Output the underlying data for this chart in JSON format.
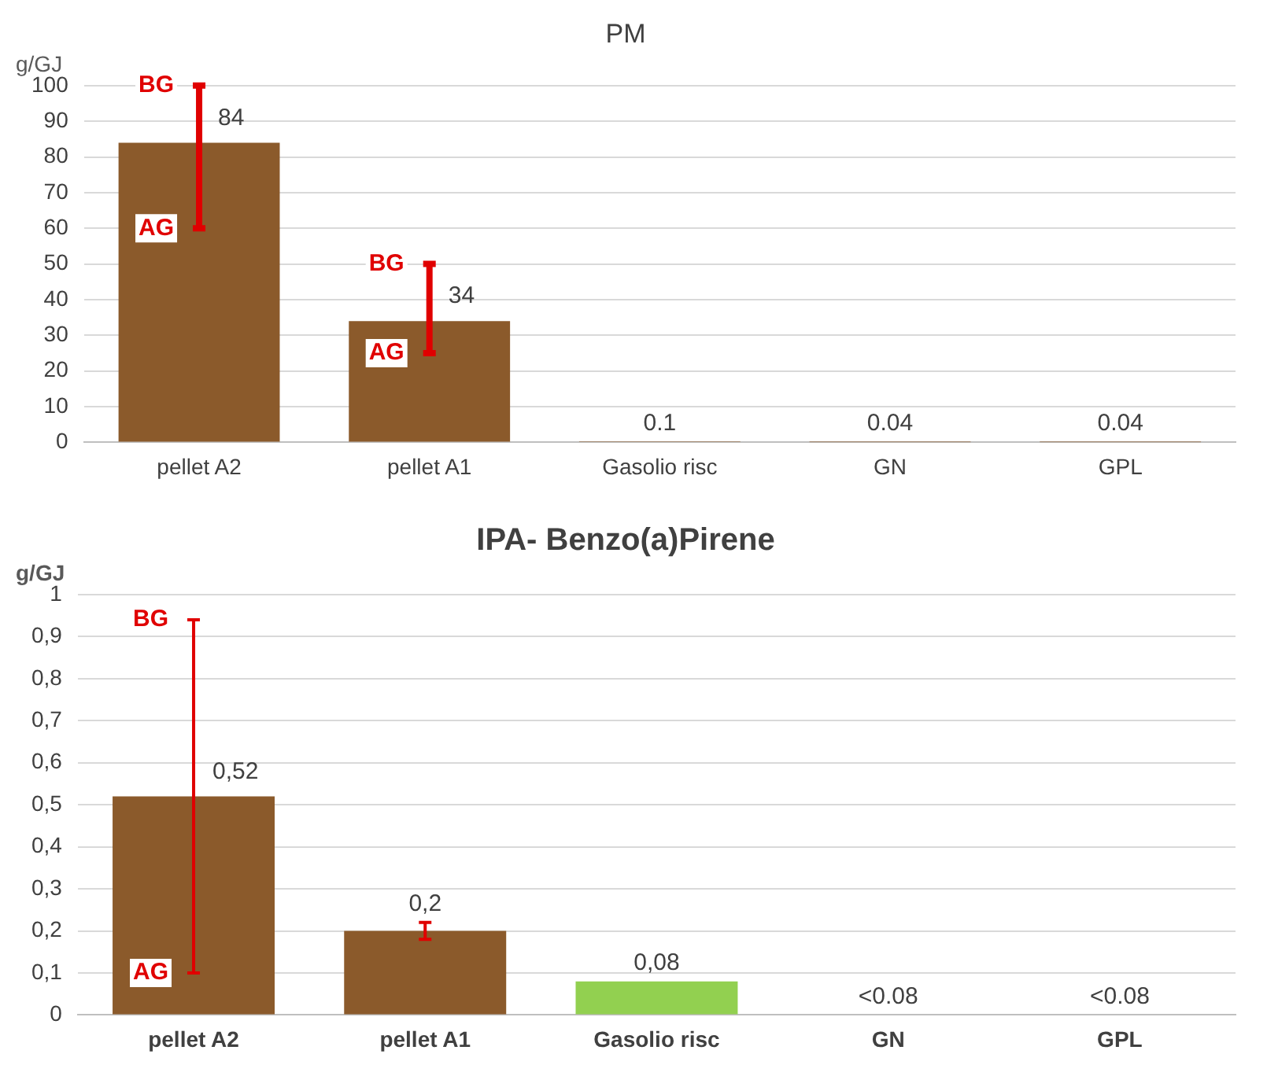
{
  "chart_data": [
    {
      "type": "bar",
      "title": "PM",
      "ylabel": "g/GJ",
      "categories": [
        "pellet A2",
        "pellet A1",
        "Gasolio risc",
        "GN",
        "GPL"
      ],
      "values": [
        84,
        34,
        0.1,
        0.04,
        0.04
      ],
      "color": "#8b5a2b",
      "errors": [
        [
          60,
          100
        ],
        [
          25,
          50
        ],
        null,
        null,
        null
      ],
      "annotations": [
        {
          "text": "BG",
          "x": "pellet A2",
          "y": 100
        },
        {
          "text": "AG",
          "x": "pellet A2",
          "y": 60
        },
        {
          "text": "BG",
          "x": "pellet A1",
          "y": 50
        },
        {
          "text": "AG",
          "x": "pellet A1",
          "y": 25
        }
      ],
      "ylim": [
        0,
        100
      ],
      "yticks": [
        0,
        10,
        20,
        30,
        40,
        50,
        60,
        70,
        80,
        90,
        100
      ],
      "grid": "y",
      "data_labels": true
    },
    {
      "type": "bar",
      "title": "IPA- Benzo(a)Pirene",
      "ylabel": "g/GJ",
      "categories": [
        "pellet A2",
        "pellet A1",
        "Gasolio risc",
        "GN",
        "GPL"
      ],
      "values": [
        0.52,
        0.2,
        0.08,
        null,
        null
      ],
      "colors": [
        "#8b5a2b",
        "#8b5a2b",
        "#92d050",
        "#8b5a2b",
        "#8b5a2b"
      ],
      "value_labels": [
        "0,52",
        "0,2",
        "0,08",
        "<0.08",
        "<0.08"
      ],
      "errors": [
        [
          0.1,
          0.94
        ],
        [
          0.18,
          0.22
        ],
        null,
        null,
        null
      ],
      "annotations": [
        {
          "text": "BG",
          "x": "pellet A2",
          "y": 0.94
        },
        {
          "text": "AG",
          "x": "pellet A2",
          "y": 0.1
        }
      ],
      "ylim": [
        0,
        1
      ],
      "yticks": [
        0,
        {
          "value": 0.1,
          "label": "0,1"
        },
        {
          "value": 0.2,
          "label": "0,2"
        },
        {
          "value": 0.3,
          "label": "0,3"
        },
        {
          "value": 0.4,
          "label": "0,4"
        },
        {
          "value": 0.5,
          "label": "0,5"
        },
        {
          "value": 0.6,
          "label": "0,6"
        },
        {
          "value": 0.7,
          "label": "0,7"
        },
        {
          "value": 0.8,
          "label": "0,8"
        },
        {
          "value": 0.9,
          "label": "0,9"
        },
        1
      ],
      "grid": "y"
    }
  ]
}
